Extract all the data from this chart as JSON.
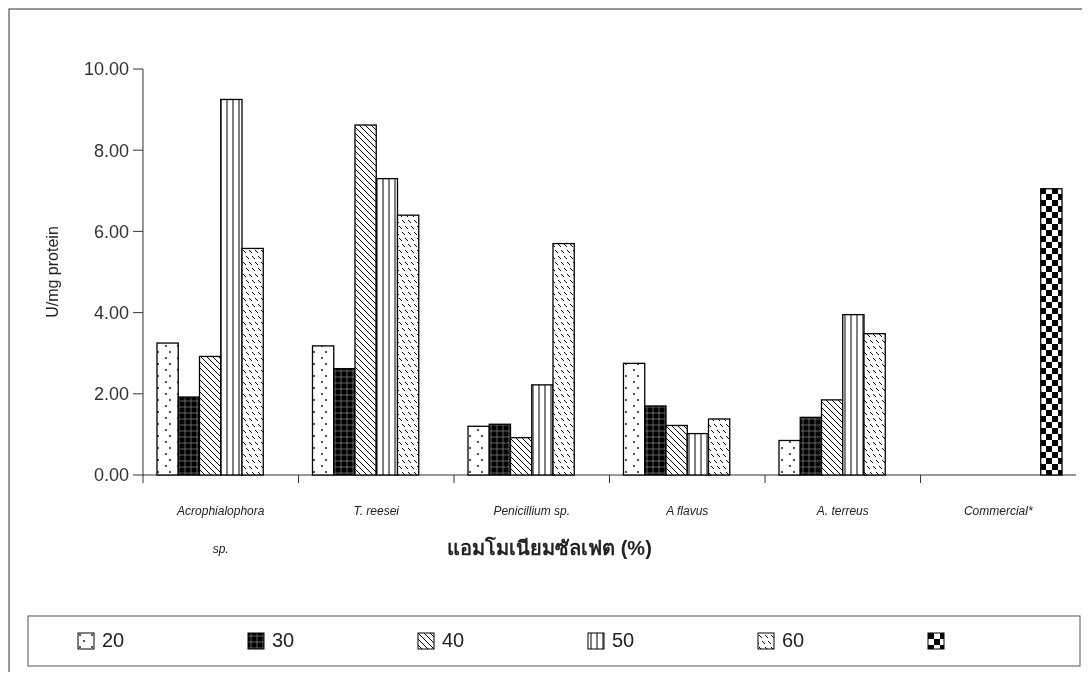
{
  "chart_data": {
    "type": "bar",
    "xlabel": "แอมโมเนียมซัลเฟต (%)",
    "ylabel": "U/mg protein",
    "categories": [
      "Acrophialophora sp.",
      "T. reesei",
      "Penicillium sp.",
      "A flavus",
      "A. terreus",
      "Commercial*"
    ],
    "series": [
      {
        "name": "20",
        "color": "#000000",
        "values": [
          3.25,
          3.18,
          1.2,
          2.75,
          0.85,
          null
        ]
      },
      {
        "name": "30",
        "color": "#000000",
        "values": [
          1.92,
          2.62,
          1.25,
          1.7,
          1.42,
          null
        ]
      },
      {
        "name": "40",
        "color": "#000000",
        "values": [
          2.92,
          8.62,
          0.92,
          1.22,
          1.85,
          null
        ]
      },
      {
        "name": "50",
        "color": "#000000",
        "values": [
          9.25,
          7.3,
          2.22,
          1.02,
          3.95,
          null
        ]
      },
      {
        "name": "60",
        "color": "#000000",
        "values": [
          5.58,
          6.4,
          5.7,
          1.38,
          3.48,
          null
        ]
      },
      {
        "color": "#000000",
        "values": [
          null,
          null,
          null,
          null,
          null,
          7.05
        ]
      }
    ],
    "ylim": [
      0,
      10
    ],
    "yticks": [
      {
        "value": 0,
        "label": "0.00"
      },
      {
        "value": 2,
        "label": "2.00"
      },
      {
        "value": 4,
        "label": "4.00"
      },
      {
        "value": 6,
        "label": "6.00"
      },
      {
        "value": 8,
        "label": "8.00"
      },
      {
        "value": 10,
        "label": "10.00"
      }
    ],
    "grid": false,
    "legend": "bottom"
  }
}
